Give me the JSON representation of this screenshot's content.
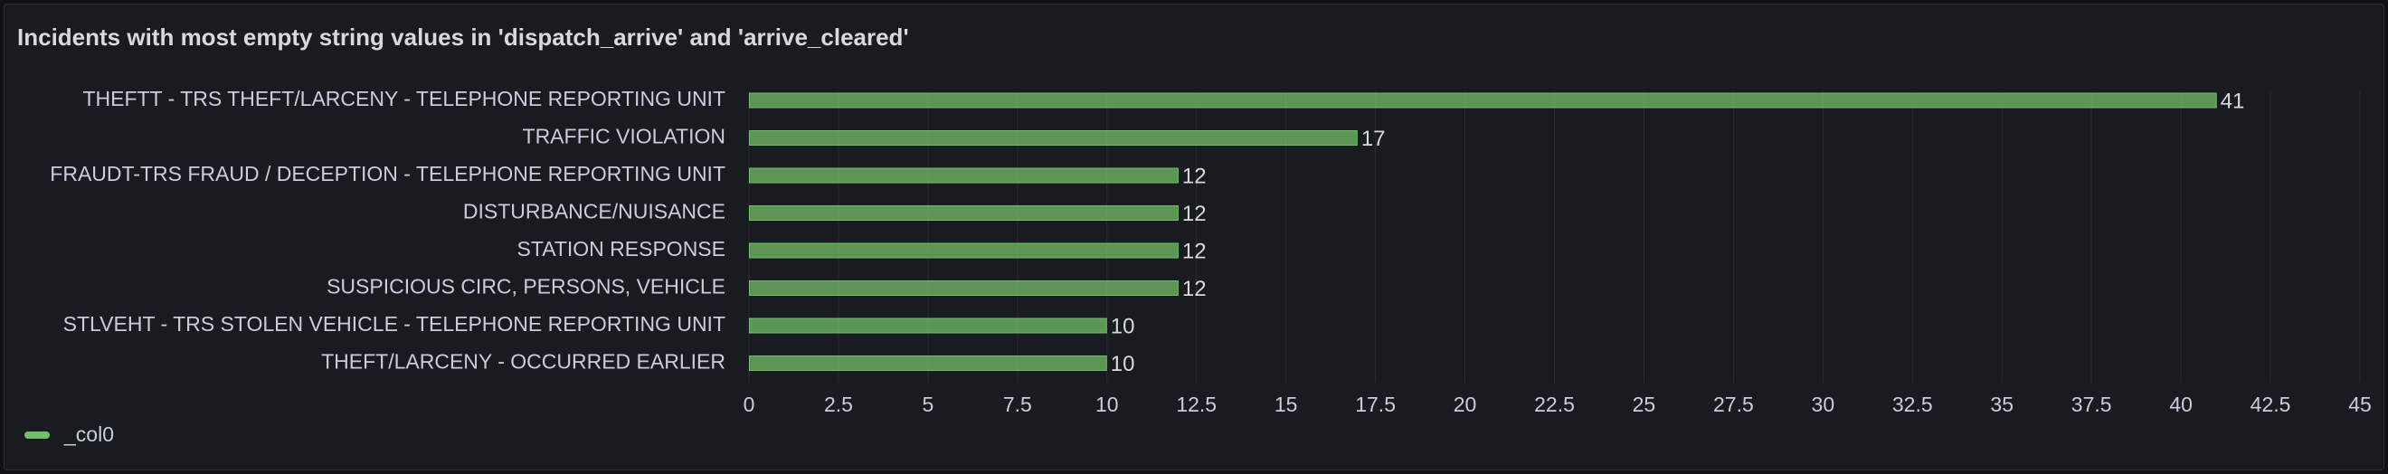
{
  "panel": {
    "title": "Incidents with most empty string values in 'dispatch_arrive' and 'arrive_cleared'"
  },
  "legend": {
    "label": "_col0",
    "color": "#73bf69"
  },
  "colors": {
    "bar_fill": "#73bf69",
    "bar_opacity": 0.75,
    "text": "#ccccdc",
    "grid": "#2a2d33"
  },
  "chart_data": {
    "type": "bar",
    "orientation": "horizontal",
    "categories": [
      "THEFTT - TRS THEFT/LARCENY - TELEPHONE REPORTING UNIT",
      "TRAFFIC VIOLATION",
      "FRAUDT-TRS FRAUD / DECEPTION - TELEPHONE REPORTING UNIT",
      "DISTURBANCE/NUISANCE",
      "STATION RESPONSE",
      "SUSPICIOUS CIRC, PERSONS, VEHICLE",
      "STLVEHT - TRS STOLEN VEHICLE - TELEPHONE REPORTING UNIT",
      "THEFT/LARCENY - OCCURRED EARLIER"
    ],
    "series": [
      {
        "name": "_col0",
        "values": [
          41,
          17,
          12,
          12,
          12,
          12,
          10,
          10
        ]
      }
    ],
    "xlim": [
      0,
      45
    ],
    "xticks": [
      0,
      2.5,
      5,
      7.5,
      10,
      12.5,
      15,
      17.5,
      20,
      22.5,
      25,
      27.5,
      30,
      32.5,
      35,
      37.5,
      40,
      42.5,
      45
    ],
    "xticklabels": [
      "0",
      "2.5",
      "5",
      "7.5",
      "10",
      "12.5",
      "15",
      "17.5",
      "20",
      "22.5",
      "25",
      "27.5",
      "30",
      "32.5",
      "35",
      "37.5",
      "40",
      "42.5",
      "45"
    ],
    "show_value_labels": true,
    "grid": true,
    "legend_position": "bottom-left"
  }
}
